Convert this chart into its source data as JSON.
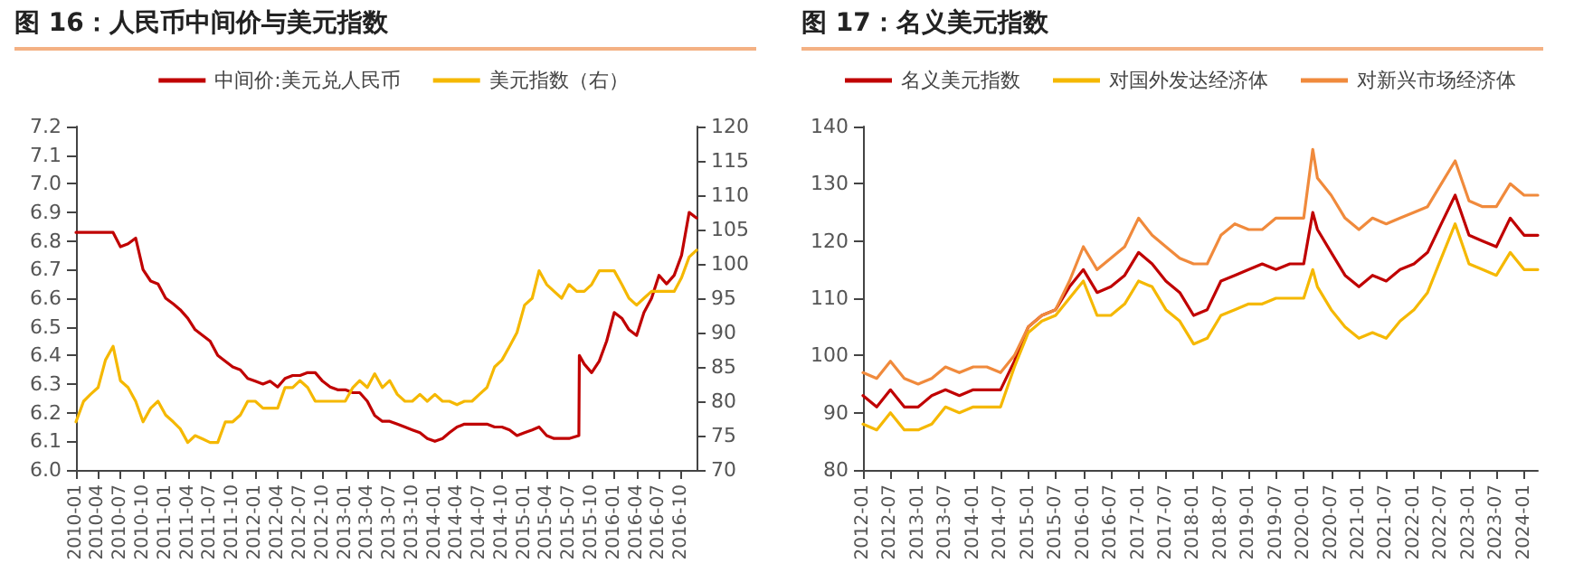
{
  "chart_data": [
    {
      "type": "line",
      "title": "图 16：人民币中间价与美元指数",
      "legend": "top",
      "grid": false,
      "marker": "none",
      "line_style": "solid",
      "xlim": [
        "2010-01",
        "2016-12"
      ],
      "xticks": [
        "2010-01",
        "2010-04",
        "2010-07",
        "2010-10",
        "2011-01",
        "2011-04",
        "2011-07",
        "2011-10",
        "2012-01",
        "2012-04",
        "2012-07",
        "2012-10",
        "2013-01",
        "2013-04",
        "2013-07",
        "2013-10",
        "2014-01",
        "2014-04",
        "2014-07",
        "2014-10",
        "2015-01",
        "2015-04",
        "2015-07",
        "2015-10",
        "2016-01",
        "2016-04",
        "2016-07",
        "2016-10"
      ],
      "ylim": [
        6.0,
        7.2
      ],
      "yticks": [
        {
          "value": 6,
          "label": "6.0"
        },
        6.1,
        6.2,
        6.3,
        6.4,
        6.5,
        6.6,
        6.7,
        6.8,
        6.9,
        {
          "value": 7,
          "label": "7.0"
        },
        7.1,
        7.2
      ],
      "y2lim": [
        70,
        120
      ],
      "y2ticks": [
        70,
        75,
        80,
        85,
        90,
        95,
        100,
        105,
        110,
        115,
        120
      ],
      "series": [
        {
          "name": "中间价:美元兑人民币",
          "color": "#c00000",
          "x": [
            "2010-01",
            "2010-02",
            "2010-03",
            "2010-04",
            "2010-05",
            "2010-06",
            "2010-07",
            "2010-08",
            "2010-09",
            "2010-10",
            "2010-11",
            "2010-12",
            "2011-01",
            "2011-02",
            "2011-03",
            "2011-04",
            "2011-05",
            "2011-06",
            "2011-07",
            "2011-08",
            "2011-09",
            "2011-10",
            "2011-11",
            "2011-12",
            "2012-01",
            "2012-02",
            "2012-03",
            "2012-04",
            "2012-05",
            "2012-06",
            "2012-07",
            "2012-08",
            "2012-09",
            "2012-10",
            "2012-11",
            "2012-12",
            "2013-01",
            "2013-02",
            "2013-03",
            "2013-04",
            "2013-05",
            "2013-06",
            "2013-07",
            "2013-08",
            "2013-09",
            "2013-10",
            "2013-11",
            "2013-12",
            "2014-01",
            "2014-02",
            "2014-03",
            "2014-04",
            "2014-05",
            "2014-06",
            "2014-07",
            "2014-08",
            "2014-09",
            "2014-10",
            "2014-11",
            "2014-12",
            "2015-01",
            "2015-02",
            "2015-03",
            "2015-04",
            "2015-05",
            "2015-06",
            "2015-07",
            "2015-08-10",
            "2015-08-12",
            "2015-09",
            "2015-10",
            "2015-11",
            "2015-12",
            "2016-01",
            "2016-02",
            "2016-03",
            "2016-04",
            "2016-05",
            "2016-06",
            "2016-07",
            "2016-08",
            "2016-09",
            "2016-10",
            "2016-11",
            "2016-12"
          ],
          "values": [
            6.83,
            6.83,
            6.83,
            6.83,
            6.83,
            6.83,
            6.78,
            6.79,
            6.81,
            6.7,
            6.66,
            6.65,
            6.6,
            6.58,
            6.56,
            6.53,
            6.49,
            6.47,
            6.45,
            6.4,
            6.38,
            6.36,
            6.35,
            6.32,
            6.31,
            6.3,
            6.31,
            6.29,
            6.32,
            6.33,
            6.33,
            6.34,
            6.34,
            6.31,
            6.29,
            6.28,
            6.28,
            6.27,
            6.27,
            6.24,
            6.19,
            6.17,
            6.17,
            6.16,
            6.15,
            6.14,
            6.13,
            6.11,
            6.1,
            6.11,
            6.13,
            6.15,
            6.16,
            6.16,
            6.16,
            6.16,
            6.15,
            6.15,
            6.14,
            6.12,
            6.13,
            6.14,
            6.15,
            6.12,
            6.11,
            6.11,
            6.11,
            6.12,
            6.4,
            6.37,
            6.34,
            6.38,
            6.45,
            6.55,
            6.53,
            6.49,
            6.47,
            6.55,
            6.6,
            6.68,
            6.65,
            6.68,
            6.75,
            6.9,
            6.88
          ]
        },
        {
          "name": "美元指数（右）",
          "color": "#f5b800",
          "axis": "y2",
          "x": [
            "2010-01",
            "2010-02",
            "2010-03",
            "2010-04",
            "2010-05",
            "2010-06",
            "2010-07",
            "2010-08",
            "2010-09",
            "2010-10",
            "2010-11",
            "2010-12",
            "2011-01",
            "2011-02",
            "2011-03",
            "2011-04",
            "2011-05",
            "2011-06",
            "2011-07",
            "2011-08",
            "2011-09",
            "2011-10",
            "2011-11",
            "2011-12",
            "2012-01",
            "2012-02",
            "2012-03",
            "2012-04",
            "2012-05",
            "2012-06",
            "2012-07",
            "2012-08",
            "2012-09",
            "2012-10",
            "2012-11",
            "2012-12",
            "2013-01",
            "2013-02",
            "2013-03",
            "2013-04",
            "2013-05",
            "2013-06",
            "2013-07",
            "2013-08",
            "2013-09",
            "2013-10",
            "2013-11",
            "2013-12",
            "2014-01",
            "2014-02",
            "2014-03",
            "2014-04",
            "2014-05",
            "2014-06",
            "2014-07",
            "2014-08",
            "2014-09",
            "2014-10",
            "2014-11",
            "2014-12",
            "2015-01",
            "2015-02",
            "2015-03",
            "2015-04",
            "2015-05",
            "2015-06",
            "2015-07",
            "2015-08",
            "2015-09",
            "2015-10",
            "2015-11",
            "2015-12",
            "2016-01",
            "2016-02",
            "2016-03",
            "2016-04",
            "2016-05",
            "2016-06",
            "2016-07",
            "2016-08",
            "2016-09",
            "2016-10",
            "2016-11",
            "2016-12"
          ],
          "values": [
            77,
            80,
            81,
            82,
            86,
            88,
            83,
            82,
            80,
            77,
            79,
            80,
            78,
            77,
            76,
            74,
            75,
            74.5,
            74,
            74,
            77,
            77,
            78,
            80,
            80,
            79,
            79,
            79,
            82,
            82,
            83,
            82,
            80,
            80,
            80,
            80,
            80,
            82,
            83,
            82,
            84,
            82,
            83,
            81,
            80,
            80,
            81,
            80,
            81,
            80,
            80,
            79.5,
            80,
            80,
            81,
            82,
            85,
            86,
            88,
            90,
            94,
            95,
            99,
            97,
            96,
            95,
            97,
            96,
            96,
            97,
            99,
            99,
            99,
            97,
            95,
            94,
            95,
            96,
            96,
            96,
            96,
            98,
            101,
            102
          ]
        }
      ]
    },
    {
      "type": "line",
      "title": "图 17：名义美元指数",
      "legend": "top",
      "grid": false,
      "marker": "none",
      "line_style": "solid",
      "xlim": [
        "2012-01",
        "2024-04"
      ],
      "xticks": [
        "2012-01",
        "2012-07",
        "2013-01",
        "2013-07",
        "2014-01",
        "2014-07",
        "2015-01",
        "2015-07",
        "2016-01",
        "2016-07",
        "2017-01",
        "2017-07",
        "2018-01",
        "2018-07",
        "2019-01",
        "2019-07",
        "2020-01",
        "2020-07",
        "2021-01",
        "2021-07",
        "2022-01",
        "2022-07",
        "2023-01",
        "2023-07",
        "2024-01"
      ],
      "ylim": [
        80,
        140
      ],
      "yticks": [
        80,
        90,
        100,
        110,
        120,
        130,
        140
      ],
      "x": [
        "2012-01",
        "2012-04",
        "2012-07",
        "2012-10",
        "2013-01",
        "2013-04",
        "2013-07",
        "2013-10",
        "2014-01",
        "2014-04",
        "2014-07",
        "2014-10",
        "2015-01",
        "2015-04",
        "2015-07",
        "2015-10",
        "2016-01",
        "2016-04",
        "2016-07",
        "2016-10",
        "2017-01",
        "2017-04",
        "2017-07",
        "2017-10",
        "2018-01",
        "2018-04",
        "2018-07",
        "2018-10",
        "2019-01",
        "2019-04",
        "2019-07",
        "2019-10",
        "2020-01",
        "2020-03",
        "2020-04",
        "2020-07",
        "2020-10",
        "2021-01",
        "2021-04",
        "2021-07",
        "2021-10",
        "2022-01",
        "2022-04",
        "2022-07",
        "2022-10",
        "2023-01",
        "2023-04",
        "2023-07",
        "2023-10",
        "2024-01",
        "2024-04"
      ],
      "series": [
        {
          "name": "名义美元指数",
          "color": "#c00000",
          "values": [
            93,
            91,
            94,
            91,
            91,
            93,
            94,
            93,
            94,
            94,
            94,
            99,
            105,
            107,
            108,
            112,
            115,
            111,
            112,
            114,
            118,
            116,
            113,
            111,
            107,
            108,
            113,
            114,
            115,
            116,
            115,
            116,
            116,
            125,
            122,
            118,
            114,
            112,
            114,
            113,
            115,
            116,
            118,
            123,
            128,
            121,
            120,
            119,
            124,
            121,
            121
          ]
        },
        {
          "name": "对国外发达经济体",
          "color": "#f5b800",
          "values": [
            88,
            87,
            90,
            87,
            87,
            88,
            91,
            90,
            91,
            91,
            91,
            98,
            104,
            106,
            107,
            110,
            113,
            107,
            107,
            109,
            113,
            112,
            108,
            106,
            102,
            103,
            107,
            108,
            109,
            109,
            110,
            110,
            110,
            115,
            112,
            108,
            105,
            103,
            104,
            103,
            106,
            108,
            111,
            117,
            123,
            116,
            115,
            114,
            118,
            115,
            115
          ]
        },
        {
          "name": "对新兴市场经济体",
          "color": "#f08a3c",
          "values": [
            97,
            96,
            99,
            96,
            95,
            96,
            98,
            97,
            98,
            98,
            97,
            100,
            105,
            107,
            108,
            113,
            119,
            115,
            117,
            119,
            124,
            121,
            119,
            117,
            116,
            116,
            121,
            123,
            122,
            122,
            124,
            124,
            124,
            136,
            131,
            128,
            124,
            122,
            124,
            123,
            124,
            125,
            126,
            130,
            134,
            127,
            126,
            126,
            130,
            128,
            128
          ]
        }
      ]
    }
  ]
}
